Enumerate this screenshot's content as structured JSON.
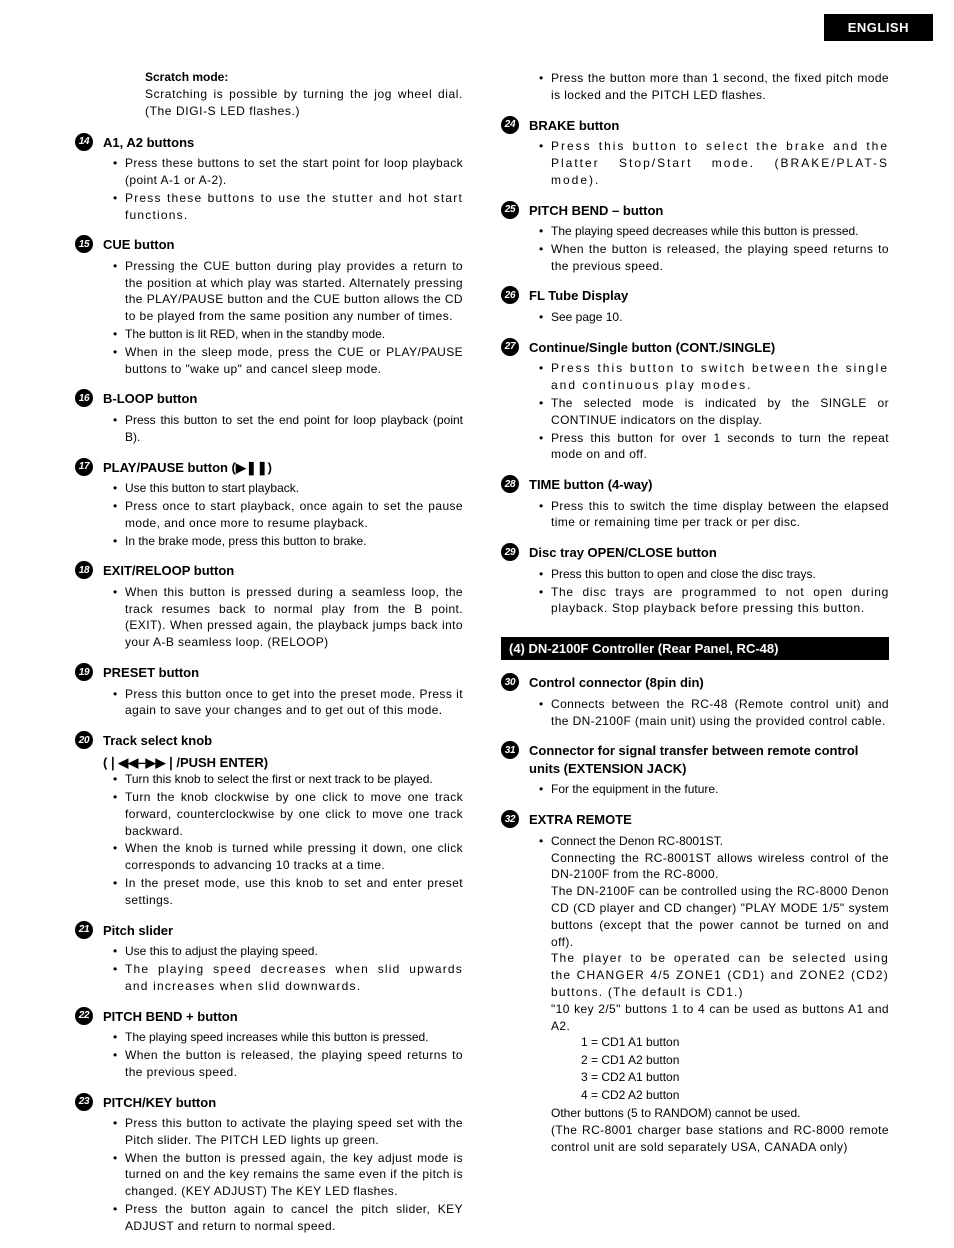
{
  "lang_badge": "ENGLISH",
  "scratch_mode": {
    "title": "Scratch mode:",
    "text": "Scratching is possible by turning the jog wheel dial. (The DIGI-S LED flashes.)"
  },
  "left_items": [
    {
      "num": "14",
      "title": "A1, A2 buttons",
      "bullets": [
        {
          "t": "Press these buttons to set the start point for loop playback (point A-1 or A-2).",
          "cls": "spread2"
        },
        {
          "t": "Press these buttons to use the stutter and hot start functions.",
          "cls": "spread3"
        }
      ]
    },
    {
      "num": "15",
      "title": "CUE button",
      "bullets": [
        {
          "t": "Pressing the CUE button during play provides a return to the position at which play was started. Alternately pressing the PLAY/PAUSE button and the CUE button allows the CD to be played from the same position any number of times.",
          "cls": "spread2"
        },
        {
          "t": "The button is lit RED, when in the standby mode.",
          "cls": ""
        },
        {
          "t": "When in the sleep mode, press the CUE or PLAY/PAUSE buttons to \"wake up\" and cancel sleep mode.",
          "cls": "spread2"
        }
      ]
    },
    {
      "num": "16",
      "title": "B-LOOP button",
      "bullets": [
        {
          "t": "Press this button to set the end point for loop playback (point B).",
          "cls": ""
        }
      ]
    },
    {
      "num": "17",
      "title": "PLAY/PAUSE button (▶❚❚)",
      "bullets": [
        {
          "t": "Use this button to start playback.",
          "cls": ""
        },
        {
          "t": "Press once to start playback, once again to set the pause mode, and once more to resume playback.",
          "cls": "spread2"
        },
        {
          "t": "In the brake mode, press this button to brake.",
          "cls": ""
        }
      ]
    },
    {
      "num": "18",
      "title": "EXIT/RELOOP button",
      "bullets": [
        {
          "t": "When this button is pressed during a seamless loop, the track resumes back to normal play from the B point. (EXIT). When pressed again, the playback jumps back into your A-B seamless loop. (RELOOP)",
          "cls": "spread2"
        }
      ]
    },
    {
      "num": "19",
      "title": "PRESET button",
      "bullets": [
        {
          "t": "Press this button once to get into the preset mode. Press it again to save your changes and to get out of this mode.",
          "cls": "spread2"
        }
      ]
    },
    {
      "num": "20",
      "title": "Track select knob",
      "subtitle": "(❘◀◀–▶▶❘/PUSH ENTER)",
      "bullets": [
        {
          "t": "Turn this knob to select the first or next track to be played.",
          "cls": ""
        },
        {
          "t": "Turn the knob clockwise by one click to move one track forward, counterclockwise by one click to move one track backward.",
          "cls": "spread2"
        },
        {
          "t": "When the knob is turned while pressing it down, one click corresponds to advancing 10 tracks at a time.",
          "cls": "spread2"
        },
        {
          "t": "In the preset mode, use this knob to set and enter preset settings.",
          "cls": "spread2"
        }
      ]
    },
    {
      "num": "21",
      "title": "Pitch slider",
      "bullets": [
        {
          "t": "Use this to adjust the playing speed.",
          "cls": ""
        },
        {
          "t": "The playing speed decreases when slid upwards and increases when slid downwards.",
          "cls": "spread3"
        }
      ]
    },
    {
      "num": "22",
      "title": "PITCH BEND + button",
      "bullets": [
        {
          "t": "The playing speed increases while this button is pressed.",
          "cls": ""
        },
        {
          "t": "When the button is released, the playing speed returns to the previous speed.",
          "cls": "spread2"
        }
      ]
    },
    {
      "num": "23",
      "title": "PITCH/KEY button",
      "bullets": [
        {
          "t": "Press this button to activate the playing speed set with the Pitch slider. The PITCH LED lights up green.",
          "cls": "spread2"
        },
        {
          "t": "When the button is pressed again, the key adjust mode is turned on and the key remains the same even if the pitch is changed. (KEY ADJUST) The KEY LED flashes.",
          "cls": "spread2"
        },
        {
          "t": "Press the button again to cancel the pitch slider, KEY ADJUST and return to normal speed.",
          "cls": "spread2"
        }
      ]
    }
  ],
  "right_top_bullet": {
    "t": "Press the button more than 1 second, the fixed pitch mode is locked and the PITCH LED flashes.",
    "cls": "spread2"
  },
  "right_items": [
    {
      "num": "24",
      "title": "BRAKE button",
      "bullets": [
        {
          "t": "Press this button to select the brake and the Platter Stop/Start mode. (BRAKE/PLAT-S mode).",
          "cls": "spread4"
        }
      ]
    },
    {
      "num": "25",
      "title": "PITCH BEND – button",
      "bullets": [
        {
          "t": "The playing speed decreases while this button is pressed.",
          "cls": ""
        },
        {
          "t": "When the button is released, the playing speed returns to the previous speed.",
          "cls": "spread2"
        }
      ]
    },
    {
      "num": "26",
      "title": "FL Tube Display",
      "bullets": [
        {
          "t": "See page 10.",
          "cls": ""
        }
      ]
    },
    {
      "num": "27",
      "title": "Continue/Single button (CONT./SINGLE)",
      "bullets": [
        {
          "t": "Press this button to switch between the single and continuous play modes.",
          "cls": "spread4"
        },
        {
          "t": "The selected mode is indicated by the SINGLE or CONTINUE indicators on the display.",
          "cls": "spread2"
        },
        {
          "t": "Press this button for over 1 seconds to turn the repeat mode on and off.",
          "cls": "spread2"
        }
      ]
    },
    {
      "num": "28",
      "title": "TIME button (4-way)",
      "bullets": [
        {
          "t": "Press this to switch the time display between the elapsed time or remaining time per track or per disc.",
          "cls": "spread2"
        }
      ]
    },
    {
      "num": "29",
      "title": "Disc tray OPEN/CLOSE button",
      "bullets": [
        {
          "t": "Press this button to open and close the disc trays.",
          "cls": ""
        },
        {
          "t": "The disc trays are programmed to not open during playback. Stop playback before pressing this button.",
          "cls": "spread"
        }
      ]
    }
  ],
  "section4_label": "(4) DN-2100F Controller (Rear Panel, RC-48)",
  "section4_items": [
    {
      "num": "30",
      "title": "Control connector (8pin din)",
      "bullets": [
        {
          "t": "Connects between the RC-48 (Remote control unit) and the DN-2100F (main unit) using the provided control cable.",
          "cls": "spread2"
        }
      ]
    },
    {
      "num": "31",
      "title": "Connector for signal transfer between remote control units (EXTENSION JACK)",
      "bullets": [
        {
          "t": "For the equipment in the future.",
          "cls": ""
        }
      ]
    }
  ],
  "extra_remote": {
    "num": "32",
    "title": "EXTRA REMOTE",
    "line1": "Connect the Denon RC-8001ST.",
    "line2": "Connecting the RC-8001ST allows wireless control of the DN-2100F from the RC-8000.",
    "line3": "The DN-2100F can be controlled using the RC-8000 Denon CD (CD player and CD changer) \"PLAY MODE 1/5\" system buttons (except that the power cannot be turned on and off).",
    "line4": "The player to be operated can be selected using the CHANGER 4/5 ZONE1 (CD1) and ZONE2 (CD2) buttons. (The default is CD1.)",
    "line5": "\"10 key 2/5\" buttons 1 to 4 can be used as buttons A1 and A2.",
    "k1": "1 = CD1 A1 button",
    "k2": "2 = CD1 A2 button",
    "k3": "3 = CD2 A1 button",
    "k4": "4 = CD2 A2 button",
    "line6": "Other buttons (5 to RANDOM) cannot be used.",
    "line7": "(The RC-8001 charger base stations and RC-8000 remote control unit are sold separately USA, CANADA only)"
  }
}
